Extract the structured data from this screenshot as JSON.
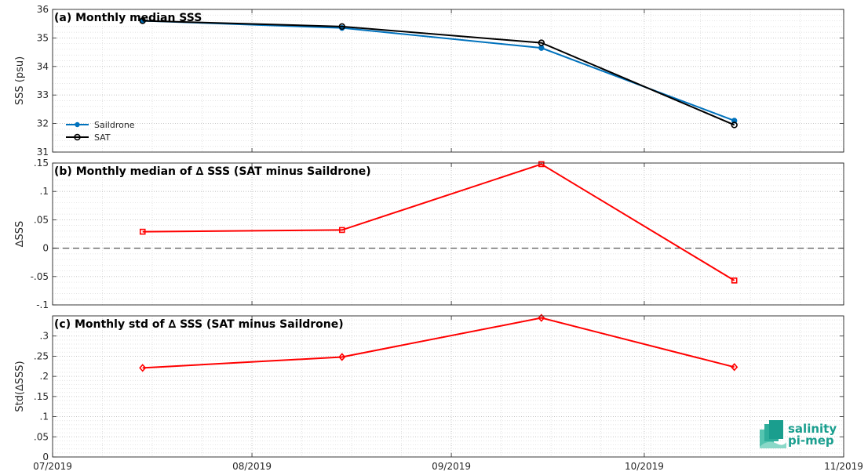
{
  "chart_data": [
    {
      "type": "line",
      "title": "(a) Monthly median SSS",
      "ylabel": "SSS (psu)",
      "ylim": [
        31,
        36
      ],
      "yticks": [
        31,
        32,
        33,
        34,
        35,
        36
      ],
      "x": [
        "2019-07-15",
        "2019-08-15",
        "2019-09-15",
        "2019-10-15"
      ],
      "legend_position": "bottom-left",
      "grid": true,
      "series": [
        {
          "name": "Saildrone",
          "color": "#0072BD",
          "marker": "filled-dot",
          "values": [
            35.6,
            35.35,
            34.65,
            32.1
          ]
        },
        {
          "name": "SAT",
          "color": "#000000",
          "marker": "open-circle",
          "values": [
            35.6,
            35.4,
            34.83,
            31.95
          ]
        }
      ]
    },
    {
      "type": "line",
      "title": "(b) Monthly median of ∆ SSS (SAT minus Saildrone)",
      "ylabel": "∆SSS",
      "ylim": [
        -0.1,
        0.15
      ],
      "yticks": [
        -0.1,
        -0.05,
        0,
        0.05,
        0.1,
        0.15
      ],
      "x": [
        "2019-07-15",
        "2019-08-15",
        "2019-09-15",
        "2019-10-15"
      ],
      "zero_line": true,
      "grid": true,
      "series": [
        {
          "color": "#FF0000",
          "marker": "square",
          "values": [
            0.029,
            0.032,
            0.148,
            -0.057
          ]
        }
      ]
    },
    {
      "type": "line",
      "title": "(c) Monthly std of ∆ SSS (SAT minus Saildrone)",
      "ylabel": "Std(∆SSS)",
      "ylim": [
        0,
        0.35
      ],
      "yticks": [
        0,
        0.05,
        0.1,
        0.15,
        0.2,
        0.25,
        0.3
      ],
      "x": [
        "2019-07-15",
        "2019-08-15",
        "2019-09-15",
        "2019-10-15"
      ],
      "xlim": [
        "2019-07-01",
        "2019-11-01"
      ],
      "xtick_dates": [
        "2019-07-01",
        "2019-08-01",
        "2019-09-01",
        "2019-10-01",
        "2019-11-01"
      ],
      "xticks": [
        "07/2019",
        "08/2019",
        "09/2019",
        "10/2019",
        "11/2019"
      ],
      "grid": true,
      "series": [
        {
          "color": "#FF0000",
          "marker": "diamond",
          "values": [
            0.221,
            0.248,
            0.345,
            0.223
          ]
        }
      ]
    }
  ],
  "logo": {
    "line1": "salinity",
    "line2": "pi-mep"
  }
}
